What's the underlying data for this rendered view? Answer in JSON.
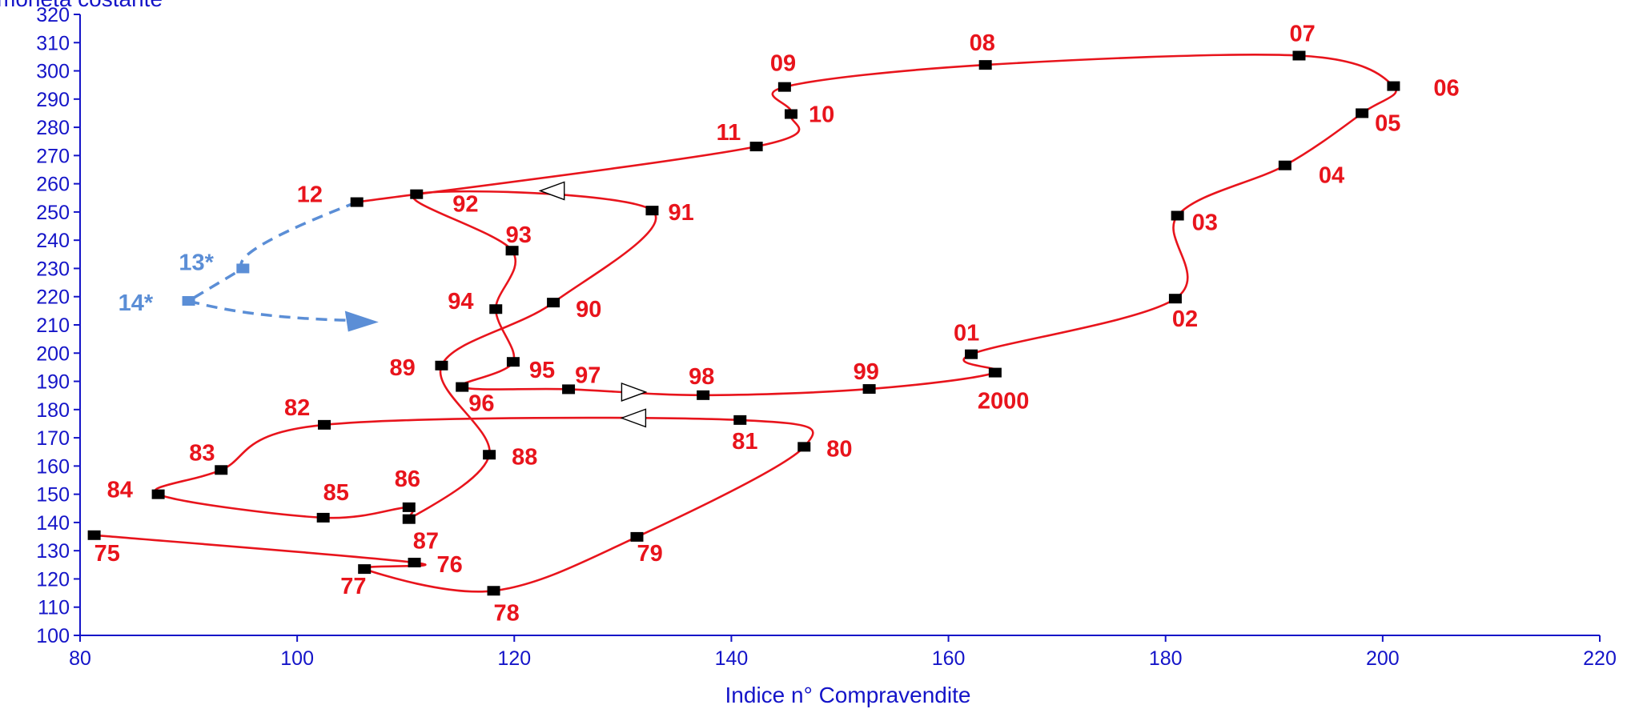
{
  "chart_data": {
    "type": "scatter",
    "xlabel": "Indice n° Compravendite",
    "ylabel": "moneta costante",
    "xlim": [
      80,
      220
    ],
    "ylim": [
      100,
      320
    ],
    "x_ticks": [
      80,
      100,
      120,
      140,
      160,
      180,
      200,
      220
    ],
    "y_ticks": [
      100,
      110,
      120,
      130,
      140,
      150,
      160,
      170,
      180,
      190,
      200,
      210,
      220,
      230,
      240,
      250,
      260,
      270,
      280,
      290,
      300,
      310,
      320
    ],
    "grid": false,
    "colors": {
      "series": "#e8141c",
      "forecast": "#5b8ed6",
      "marker": "#000000",
      "axis": "#1414c8"
    },
    "series": [
      {
        "points": [
          {
            "label": "75",
            "x": 81.3,
            "y": 135.5
          },
          {
            "label": "76",
            "x": 110.8,
            "y": 125.8
          },
          {
            "label": "77",
            "x": 106.2,
            "y": 123.5
          },
          {
            "label": "78",
            "x": 118.1,
            "y": 115.8
          },
          {
            "label": "79",
            "x": 131.3,
            "y": 134.9
          },
          {
            "label": "80",
            "x": 146.7,
            "y": 166.8
          },
          {
            "label": "81",
            "x": 140.8,
            "y": 176.3
          },
          {
            "label": "82",
            "x": 102.5,
            "y": 174.6
          },
          {
            "label": "83",
            "x": 93.0,
            "y": 158.6
          },
          {
            "label": "84",
            "x": 87.2,
            "y": 150.0
          },
          {
            "label": "85",
            "x": 102.4,
            "y": 141.7
          },
          {
            "label": "86",
            "x": 110.3,
            "y": 145.4
          },
          {
            "label": "87",
            "x": 110.3,
            "y": 141.2
          },
          {
            "label": "88",
            "x": 117.7,
            "y": 164.0
          },
          {
            "label": "89",
            "x": 113.3,
            "y": 195.6
          },
          {
            "label": "90",
            "x": 123.6,
            "y": 217.9
          },
          {
            "label": "91",
            "x": 132.7,
            "y": 250.5
          },
          {
            "label": "92",
            "x": 111.0,
            "y": 256.3
          },
          {
            "label": "93",
            "x": 119.8,
            "y": 236.3
          },
          {
            "label": "94",
            "x": 118.3,
            "y": 215.6
          },
          {
            "label": "95",
            "x": 119.9,
            "y": 196.9
          },
          {
            "label": "96",
            "x": 115.2,
            "y": 188.0
          },
          {
            "label": "97",
            "x": 125.0,
            "y": 187.2
          },
          {
            "label": "98",
            "x": 137.4,
            "y": 185.1
          },
          {
            "label": "99",
            "x": 152.7,
            "y": 187.3
          },
          {
            "label": "2000",
            "x": 164.3,
            "y": 193.1
          },
          {
            "label": "01",
            "x": 162.1,
            "y": 199.6
          },
          {
            "label": "02",
            "x": 180.9,
            "y": 219.3
          },
          {
            "label": "03",
            "x": 181.1,
            "y": 248.7
          },
          {
            "label": "04",
            "x": 191.0,
            "y": 266.5
          },
          {
            "label": "05",
            "x": 198.1,
            "y": 285.0
          },
          {
            "label": "06",
            "x": 201.0,
            "y": 294.6
          },
          {
            "label": "07",
            "x": 192.3,
            "y": 305.4
          },
          {
            "label": "08",
            "x": 163.4,
            "y": 302.1
          },
          {
            "label": "09",
            "x": 144.9,
            "y": 294.3
          },
          {
            "label": "10",
            "x": 145.5,
            "y": 284.7
          },
          {
            "label": "11",
            "x": 142.3,
            "y": 273.2
          },
          {
            "label": "12",
            "x": 105.5,
            "y": 253.5
          }
        ]
      },
      {
        "points": [
          {
            "label": "13*",
            "x": 95.0,
            "y": 230.0
          },
          {
            "label": "14*",
            "x": 90.0,
            "y": 218.5
          }
        ]
      }
    ]
  }
}
